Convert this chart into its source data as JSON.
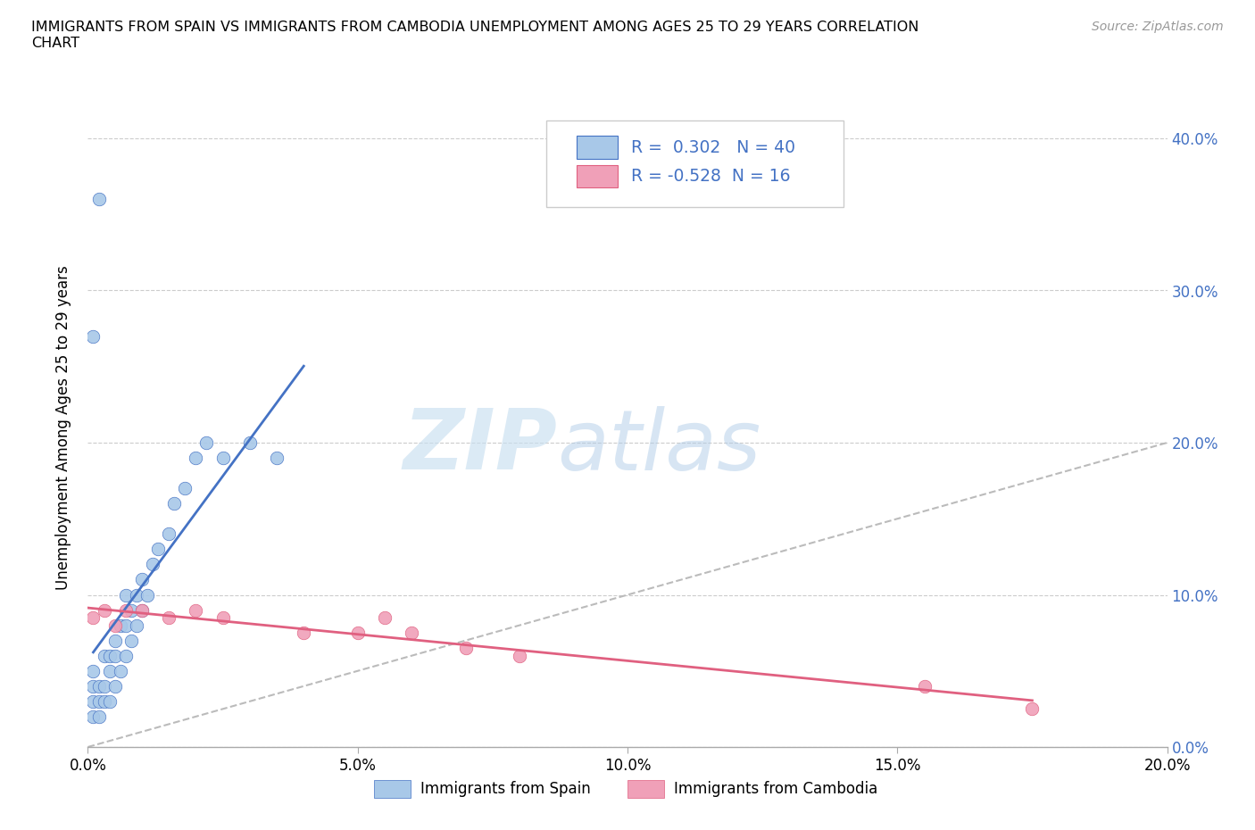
{
  "title": "IMMIGRANTS FROM SPAIN VS IMMIGRANTS FROM CAMBODIA UNEMPLOYMENT AMONG AGES 25 TO 29 YEARS CORRELATION\nCHART",
  "source": "Source: ZipAtlas.com",
  "ylabel_label": "Unemployment Among Ages 25 to 29 years",
  "xlim": [
    0.0,
    0.2
  ],
  "ylim": [
    0.0,
    0.42
  ],
  "spain_color": "#A8C8E8",
  "cambodia_color": "#F0A0B8",
  "spain_line_color": "#4472C4",
  "cambodia_line_color": "#E06080",
  "diagonal_color": "#BBBBBB",
  "R_spain": 0.302,
  "N_spain": 40,
  "R_cambodia": -0.528,
  "N_cambodia": 16,
  "spain_x": [
    0.001,
    0.001,
    0.001,
    0.001,
    0.002,
    0.002,
    0.002,
    0.003,
    0.003,
    0.003,
    0.004,
    0.004,
    0.004,
    0.005,
    0.005,
    0.005,
    0.006,
    0.006,
    0.007,
    0.007,
    0.007,
    0.008,
    0.008,
    0.009,
    0.009,
    0.01,
    0.01,
    0.011,
    0.012,
    0.013,
    0.015,
    0.016,
    0.018,
    0.02,
    0.022,
    0.025,
    0.03,
    0.035,
    0.001,
    0.002
  ],
  "spain_y": [
    0.02,
    0.03,
    0.04,
    0.05,
    0.02,
    0.03,
    0.04,
    0.03,
    0.04,
    0.06,
    0.03,
    0.05,
    0.06,
    0.04,
    0.06,
    0.07,
    0.05,
    0.08,
    0.06,
    0.08,
    0.1,
    0.07,
    0.09,
    0.08,
    0.1,
    0.09,
    0.11,
    0.1,
    0.12,
    0.13,
    0.14,
    0.16,
    0.17,
    0.19,
    0.2,
    0.19,
    0.2,
    0.19,
    0.27,
    0.36
  ],
  "cambodia_x": [
    0.001,
    0.003,
    0.005,
    0.007,
    0.01,
    0.015,
    0.02,
    0.025,
    0.04,
    0.05,
    0.055,
    0.06,
    0.07,
    0.08,
    0.155,
    0.175
  ],
  "cambodia_y": [
    0.085,
    0.09,
    0.08,
    0.09,
    0.09,
    0.085,
    0.09,
    0.085,
    0.075,
    0.075,
    0.085,
    0.075,
    0.065,
    0.06,
    0.04,
    0.025
  ]
}
